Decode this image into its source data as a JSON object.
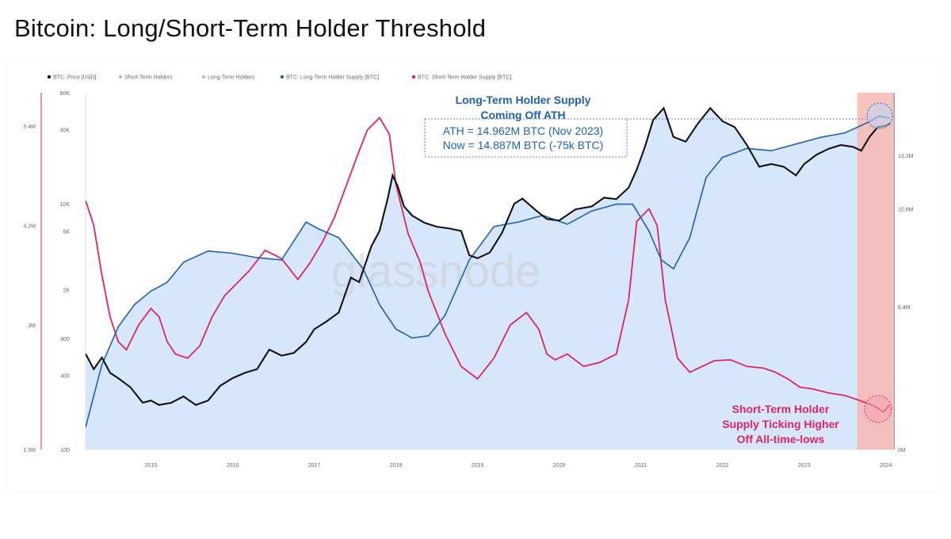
{
  "title": "Bitcoin: Long/Short-Term Holder Threshold",
  "watermark": "glassnode",
  "colors": {
    "price": "#111111",
    "lth_supply": "#1f5fb8",
    "sth_supply": "#e0245e",
    "area_fill": "#d6e6fb",
    "highlight": "#f8b7b0"
  },
  "legend": [
    {
      "label": "BTC: Price [USD]",
      "color": "#111111"
    },
    {
      "label": "Short-Term Holders",
      "color": "#bbbbbb"
    },
    {
      "label": "Long-Term Holders",
      "color": "#bbbbbb"
    },
    {
      "label": "BTC: Long-Term Holder Supply [BTC]",
      "color": "#1f5fb8"
    },
    {
      "label": "BTC: Short-Term Holder Supply [BTC]",
      "color": "#e0245e"
    }
  ],
  "annotations": {
    "lth": {
      "line1": "Long-Term Holder Supply",
      "line2": "Coming Off ATH",
      "line3": "ATH = 14.962M BTC (Nov 2023)",
      "line4": "Now = 14.887M BTC (-75k BTC)"
    },
    "sth": {
      "line1": "Short-Term Holder",
      "line2": "Supply Ticking Higher",
      "line3": "Off All-time-lows"
    }
  },
  "chart_data": {
    "type": "line",
    "x_ticks": [
      "2015",
      "2016",
      "2017",
      "2018",
      "2019",
      "2020",
      "2021",
      "2022",
      "2023",
      "2024"
    ],
    "xlim": [
      2014.2,
      2024.1
    ],
    "y_price": {
      "scale": "log",
      "ylim": [
        100,
        80000
      ],
      "ticks": [
        "80K",
        "40K",
        "10K",
        "6K",
        "2K",
        "800",
        "400",
        "100"
      ]
    },
    "y_lth": {
      "ylim": [
        0,
        16000000
      ],
      "ticks": [
        "13.2M",
        "10.8M",
        "6.4M",
        "0M"
      ]
    },
    "y_sth": {
      "ylim": [
        1500000,
        5800000
      ],
      "ticks": [
        "5.4M",
        "4.2M",
        "3M",
        "1.5M"
      ]
    },
    "highlight_range": [
      2023.65,
      2024.1
    ],
    "series": [
      {
        "name": "BTC: Price [USD]",
        "x": [
          2014.2,
          2014.3,
          2014.4,
          2014.5,
          2014.6,
          2014.75,
          2014.9,
          2015.0,
          2015.1,
          2015.25,
          2015.4,
          2015.55,
          2015.7,
          2015.85,
          2016.0,
          2016.15,
          2016.3,
          2016.45,
          2016.6,
          2016.75,
          2016.9,
          2017.0,
          2017.15,
          2017.3,
          2017.45,
          2017.55,
          2017.7,
          2017.8,
          2017.9,
          2017.96,
          2018.02,
          2018.1,
          2018.2,
          2018.35,
          2018.5,
          2018.65,
          2018.8,
          2018.9,
          2019.0,
          2019.15,
          2019.3,
          2019.45,
          2019.55,
          2019.7,
          2019.85,
          2020.0,
          2020.2,
          2020.4,
          2020.55,
          2020.7,
          2020.85,
          2020.95,
          2021.05,
          2021.15,
          2021.28,
          2021.4,
          2021.55,
          2021.7,
          2021.85,
          2022.0,
          2022.15,
          2022.3,
          2022.45,
          2022.6,
          2022.75,
          2022.9,
          2023.0,
          2023.15,
          2023.3,
          2023.45,
          2023.6,
          2023.7,
          2023.8,
          2023.9,
          2024.0,
          2024.05
        ],
        "values": [
          600,
          450,
          560,
          420,
          380,
          320,
          240,
          250,
          230,
          240,
          270,
          230,
          250,
          330,
          380,
          420,
          450,
          650,
          580,
          610,
          750,
          950,
          1100,
          1300,
          2500,
          2300,
          4500,
          6000,
          11000,
          17000,
          14000,
          9500,
          8000,
          7000,
          6500,
          6300,
          6000,
          3800,
          3600,
          4000,
          5800,
          10000,
          11000,
          9000,
          7500,
          7300,
          9000,
          9500,
          11200,
          10900,
          13500,
          19000,
          29000,
          48000,
          60000,
          35000,
          32000,
          45000,
          60000,
          47000,
          42000,
          30000,
          20000,
          21000,
          20000,
          17000,
          21000,
          25000,
          28000,
          30000,
          29000,
          27000,
          35000,
          42000,
          43000,
          45000
        ]
      },
      {
        "name": "BTC: Long-Term Holder Supply [BTC]",
        "x": [
          2014.2,
          2014.4,
          2014.6,
          2014.8,
          2015.0,
          2015.2,
          2015.4,
          2015.7,
          2016.0,
          2016.3,
          2016.6,
          2016.9,
          2017.05,
          2017.3,
          2017.6,
          2017.8,
          2018.0,
          2018.2,
          2018.4,
          2018.6,
          2018.9,
          2019.2,
          2019.5,
          2019.8,
          2020.1,
          2020.4,
          2020.7,
          2020.9,
          2021.1,
          2021.25,
          2021.4,
          2021.6,
          2021.8,
          2022.0,
          2022.3,
          2022.6,
          2022.9,
          2023.2,
          2023.5,
          2023.8,
          2023.92,
          2024.0,
          2024.05
        ],
        "values": [
          1000000,
          3800000,
          5500000,
          6500000,
          7100000,
          7500000,
          8400000,
          8900000,
          8800000,
          8600000,
          8500000,
          10200000,
          9900000,
          9500000,
          8100000,
          6500000,
          5400000,
          5000000,
          5100000,
          6000000,
          8500000,
          10000000,
          10200000,
          10500000,
          10100000,
          10700000,
          11000000,
          11000000,
          9800000,
          8500000,
          8100000,
          9500000,
          12200000,
          13100000,
          13500000,
          13400000,
          13700000,
          14000000,
          14200000,
          14700000,
          14962000,
          14887000,
          14880000
        ]
      },
      {
        "name": "BTC: Short-Term Holder Supply [BTC]",
        "x": [
          2014.2,
          2014.3,
          2014.4,
          2014.5,
          2014.6,
          2014.7,
          2014.85,
          2015.0,
          2015.1,
          2015.2,
          2015.3,
          2015.45,
          2015.6,
          2015.75,
          2015.9,
          2016.0,
          2016.2,
          2016.4,
          2016.6,
          2016.8,
          2016.95,
          2017.1,
          2017.25,
          2017.4,
          2017.55,
          2017.65,
          2017.8,
          2017.92,
          2018.0,
          2018.15,
          2018.3,
          2018.4,
          2018.6,
          2018.8,
          2019.0,
          2019.2,
          2019.4,
          2019.6,
          2019.75,
          2019.85,
          2019.95,
          2020.1,
          2020.3,
          2020.5,
          2020.7,
          2020.85,
          2020.95,
          2021.1,
          2021.2,
          2021.3,
          2021.45,
          2021.6,
          2021.75,
          2021.9,
          2022.1,
          2022.3,
          2022.5,
          2022.65,
          2022.8,
          2022.95,
          2023.1,
          2023.3,
          2023.5,
          2023.65,
          2023.8,
          2023.9,
          2023.97,
          2024.05
        ],
        "values": [
          4500000,
          4200000,
          3600000,
          3100000,
          2800000,
          2700000,
          3000000,
          3200000,
          3100000,
          2800000,
          2650000,
          2600000,
          2750000,
          3100000,
          3350000,
          3450000,
          3650000,
          3900000,
          3800000,
          3550000,
          3750000,
          4000000,
          4300000,
          4700000,
          5100000,
          5350000,
          5500000,
          5300000,
          4700000,
          4100000,
          3750000,
          3400000,
          2900000,
          2500000,
          2350000,
          2600000,
          3000000,
          3150000,
          2950000,
          2650000,
          2580000,
          2650000,
          2500000,
          2550000,
          2650000,
          3300000,
          4250000,
          4400000,
          4200000,
          3300000,
          2600000,
          2430000,
          2500000,
          2570000,
          2580000,
          2500000,
          2480000,
          2430000,
          2350000,
          2250000,
          2230000,
          2180000,
          2150000,
          2100000,
          2050000,
          2000000,
          1950000,
          2040000
        ]
      }
    ]
  }
}
